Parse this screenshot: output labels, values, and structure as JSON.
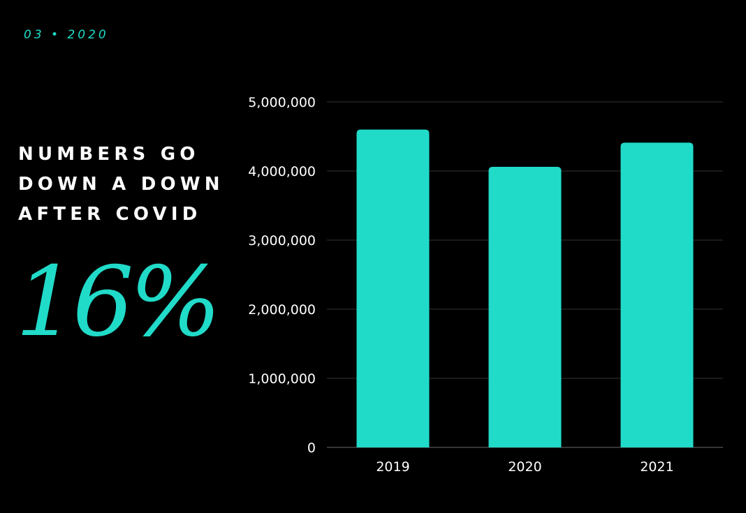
{
  "header": {
    "date_label": "03 • 2020"
  },
  "headline": {
    "lines": [
      "NUMBERS GO",
      "DOWN A DOWN",
      "AFTER COVID"
    ]
  },
  "stat": {
    "value": "16%"
  },
  "colors": {
    "accent": "#21dbc9",
    "background": "#000000",
    "text": "#ffffff",
    "gridline": "#333333"
  },
  "chart_data": {
    "type": "bar",
    "categories": [
      "2019",
      "2020",
      "2021"
    ],
    "values": [
      4600000,
      4060000,
      4410000
    ],
    "ylim": [
      0,
      5000000
    ],
    "yticks": [
      0,
      1000000,
      2000000,
      3000000,
      4000000,
      5000000
    ],
    "ytick_labels": [
      "0",
      "1,000,000",
      "2,000,000",
      "3,000,000",
      "4,000,000",
      "5,000,000"
    ],
    "grid": true,
    "legend": "none",
    "title": "",
    "xlabel": "",
    "ylabel": ""
  }
}
